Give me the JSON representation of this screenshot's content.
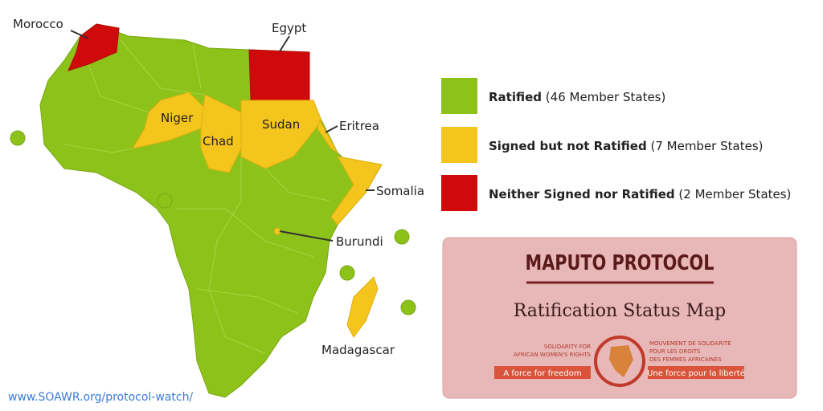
{
  "map": {
    "labels": [
      "Morocco",
      "Egypt",
      "Niger",
      "Chad",
      "Sudan",
      "Eritrea",
      "Somalia",
      "Burundi",
      "Madagascar"
    ]
  },
  "legend": [
    {
      "label": "Ratified",
      "detail": "(46 Member States)"
    },
    {
      "label": "Signed but not Ratified",
      "detail": "(7 Member States)"
    },
    {
      "label": "Neither Signed nor Ratified",
      "detail": "(2 Member States)"
    }
  ],
  "panel": {
    "title": "MAPUTO PROTOCOL",
    "subtitle": "Ratification Status Map",
    "logo_left": [
      "SOLIDARITY FOR",
      "AFRICAN WOMEN'S RIGHTS"
    ],
    "tagline_left": "A force for freedom",
    "logo_right": [
      "MOUVEMENT DE SOLIDARITÉ",
      "POUR LES DROITS",
      "DES FEMMES AFRICAINES"
    ],
    "tagline_right": "Une force pour la liberté"
  },
  "url": "www.SOAWR.org/protocol-watch/"
}
